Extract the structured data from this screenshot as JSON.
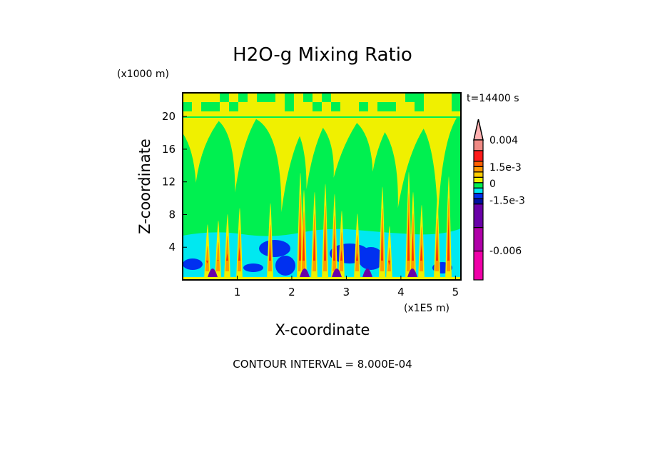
{
  "chart_data": {
    "type": "heatmap",
    "title": "H2O-g Mixing Ratio",
    "xlabel": "X-coordinate",
    "ylabel": "Z-coordinate",
    "x_units": "(x1E5 m)",
    "y_units": "(x1000 m)",
    "time_label": "t=14400 s",
    "footer": "CONTOUR INTERVAL = 8.000E-04",
    "xlim": [
      0,
      5.1
    ],
    "ylim": [
      0,
      22.9
    ],
    "x_ticks": [
      {
        "v": 1,
        "label": "1"
      },
      {
        "v": 2,
        "label": "2"
      },
      {
        "v": 3,
        "label": "3"
      },
      {
        "v": 4,
        "label": "4"
      },
      {
        "v": 5,
        "label": "5"
      }
    ],
    "y_ticks": [
      {
        "v": 4,
        "label": "4"
      },
      {
        "v": 8,
        "label": "8"
      },
      {
        "v": 12,
        "label": "12"
      },
      {
        "v": 16,
        "label": "16"
      },
      {
        "v": 20,
        "label": "20"
      }
    ],
    "colorbar": {
      "levels": [
        {
          "color": "#f08a84",
          "w": 5
        },
        {
          "color": "#ff1a1a",
          "w": 5
        },
        {
          "color": "#ff6000",
          "w": 2.5
        },
        {
          "color": "#ff9900",
          "w": 2.5
        },
        {
          "color": "#ffcc00",
          "w": 2.5
        },
        {
          "color": "#f0f000",
          "w": 2.5
        },
        {
          "color": "#00f050",
          "w": 2.5
        },
        {
          "color": "#00e8f0",
          "w": 2.5
        },
        {
          "color": "#0030f0",
          "w": 2.5
        },
        {
          "color": "#0010a0",
          "w": 2.5
        },
        {
          "color": "#6a00a8",
          "w": 11
        },
        {
          "color": "#b000a8",
          "w": 11
        },
        {
          "color": "#f000a8",
          "w": 13.5
        }
      ],
      "extend_top_color": "#ffb0b0",
      "tick_labels": [
        {
          "label": "0.004",
          "pos": 0
        },
        {
          "label": "1.5e-3",
          "pos": 0.195
        },
        {
          "label": "0",
          "pos": 0.31
        },
        {
          "label": "-1.5e-3",
          "pos": 0.43
        },
        {
          "label": "-0.006",
          "pos": 0.79
        }
      ]
    }
  }
}
